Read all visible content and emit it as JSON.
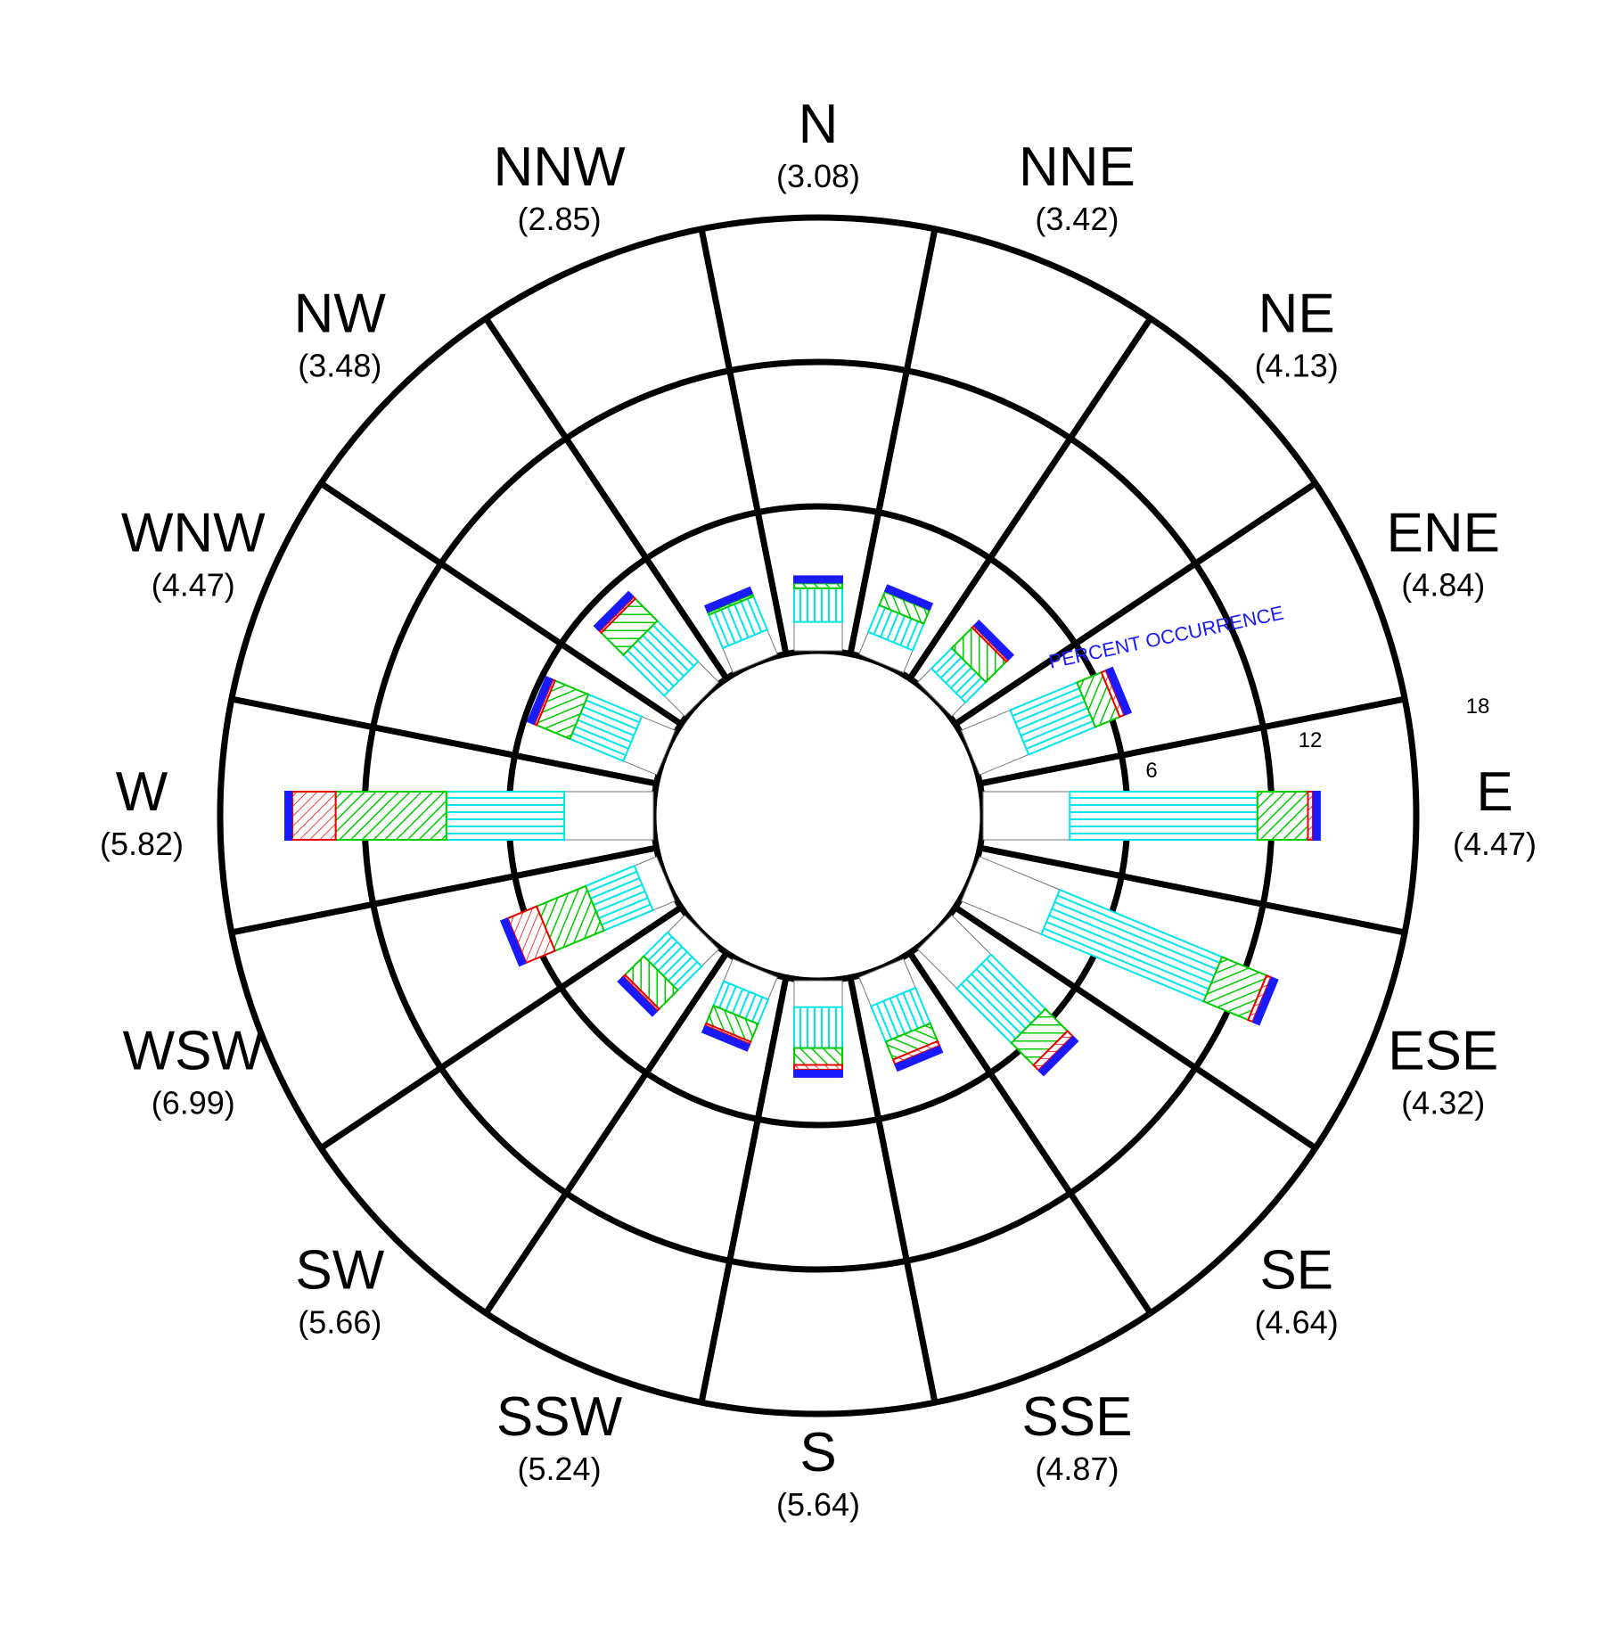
{
  "chart_data": {
    "type": "wind-rose",
    "radial_axis": {
      "title": "PERCENT OCCURRENCE",
      "ticks": [
        6,
        12,
        18
      ],
      "range": [
        0,
        18
      ],
      "calm_circle_percent": 0
    },
    "directions": [
      {
        "label": "N",
        "value": "(3.08)",
        "angle": 0
      },
      {
        "label": "NNE",
        "value": "(3.42)",
        "angle": 22.5
      },
      {
        "label": "NE",
        "value": "(4.13)",
        "angle": 45
      },
      {
        "label": "ENE",
        "value": "(4.84)",
        "angle": 67.5
      },
      {
        "label": "E",
        "value": "(4.47)",
        "angle": 90
      },
      {
        "label": "ESE",
        "value": "(4.32)",
        "angle": 112.5
      },
      {
        "label": "SE",
        "value": "(4.64)",
        "angle": 135
      },
      {
        "label": "SSE",
        "value": "(4.87)",
        "angle": 157.5
      },
      {
        "label": "S",
        "value": "(5.64)",
        "angle": 180
      },
      {
        "label": "SSW",
        "value": "(5.24)",
        "angle": 202.5
      },
      {
        "label": "SW",
        "value": "(5.66)",
        "angle": 225
      },
      {
        "label": "WSW",
        "value": "(6.99)",
        "angle": 247.5
      },
      {
        "label": "W",
        "value": "(5.82)",
        "angle": 270
      },
      {
        "label": "WNW",
        "value": "(4.47)",
        "angle": 292.5
      },
      {
        "label": "NW",
        "value": "(3.48)",
        "angle": 315
      },
      {
        "label": "NNW",
        "value": "(2.85)",
        "angle": 337.5
      }
    ],
    "series_colors": [
      "#ffffff",
      "#00e5ee",
      "#00cc00",
      "#ee0000",
      "#1a1aff"
    ],
    "bars": [
      {
        "dir": "N",
        "segments": [
          1.2,
          1.4,
          0.2,
          0.0,
          0.3
        ]
      },
      {
        "dir": "NNE",
        "segments": [
          1.0,
          1.2,
          0.6,
          0.0,
          0.3
        ]
      },
      {
        "dir": "NE",
        "segments": [
          0.8,
          1.2,
          1.2,
          0.1,
          0.3
        ]
      },
      {
        "dir": "ENE",
        "segments": [
          2.2,
          3.0,
          1.1,
          0.2,
          0.3
        ]
      },
      {
        "dir": "E",
        "segments": [
          3.6,
          7.8,
          2.1,
          0.2,
          0.3
        ]
      },
      {
        "dir": "ESE",
        "segments": [
          3.6,
          7.3,
          2.0,
          0.2,
          0.3
        ]
      },
      {
        "dir": "SE",
        "segments": [
          2.3,
          3.2,
          1.3,
          0.3,
          0.3
        ]
      },
      {
        "dir": "SSE",
        "segments": [
          1.3,
          1.6,
          0.8,
          0.2,
          0.3
        ]
      },
      {
        "dir": "S",
        "segments": [
          1.1,
          1.7,
          0.7,
          0.2,
          0.3
        ]
      },
      {
        "dir": "SSW",
        "segments": [
          1.0,
          1.1,
          0.8,
          0.1,
          0.3
        ]
      },
      {
        "dir": "SW",
        "segments": [
          1.0,
          1.4,
          1.1,
          0.1,
          0.3
        ]
      },
      {
        "dir": "WSW",
        "segments": [
          1.0,
          2.2,
          2.2,
          1.3,
          0.3
        ]
      },
      {
        "dir": "W",
        "segments": [
          3.7,
          4.9,
          4.6,
          1.8,
          0.3
        ]
      },
      {
        "dir": "WNW",
        "segments": [
          1.5,
          2.4,
          1.5,
          0.1,
          0.3
        ]
      },
      {
        "dir": "NW",
        "segments": [
          1.2,
          2.4,
          1.3,
          0.1,
          0.3
        ]
      },
      {
        "dir": "NNW",
        "segments": [
          1.1,
          1.5,
          0.1,
          0.0,
          0.3
        ]
      }
    ]
  }
}
